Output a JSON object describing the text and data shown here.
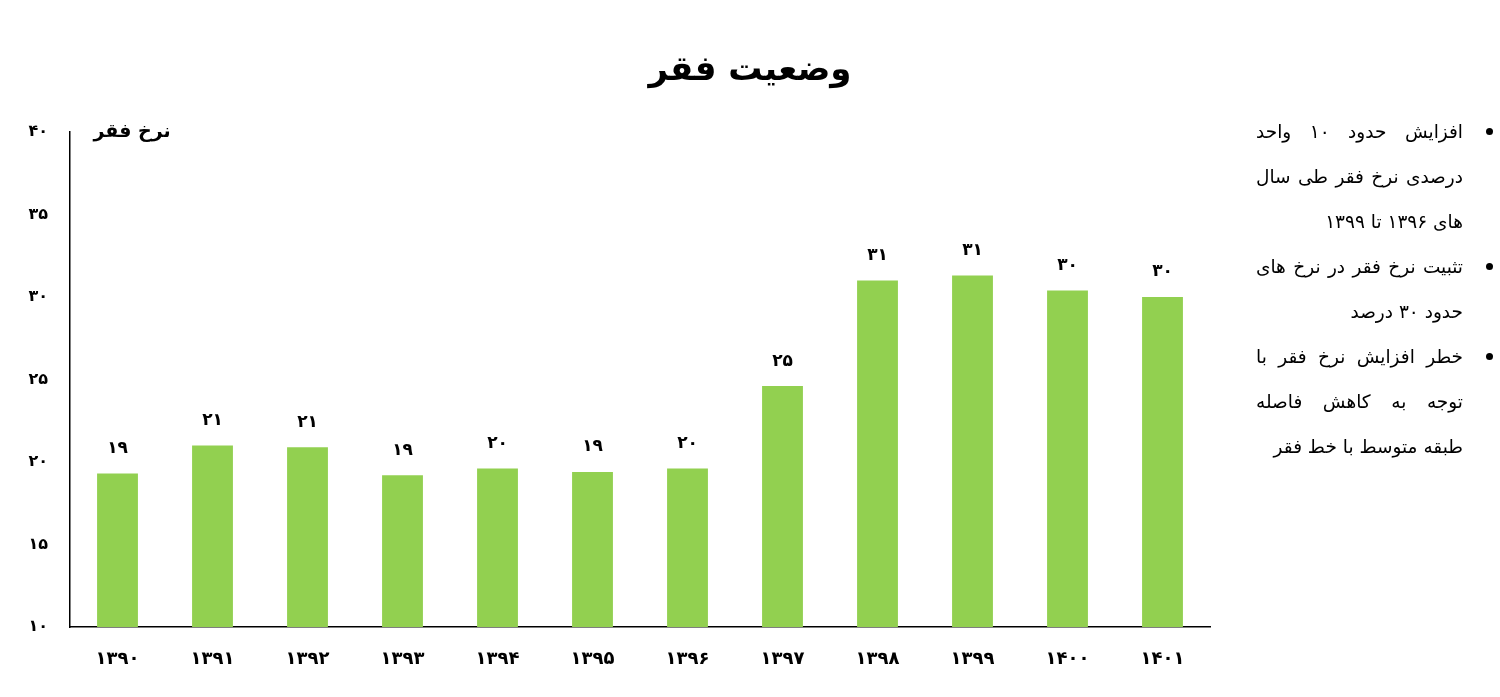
{
  "chart_data": {
    "type": "bar",
    "title": "وضعیت فقر",
    "ylabel": "نرخ فقر",
    "categories": [
      "۱۳۹۰",
      "۱۳۹۱",
      "۱۳۹۲",
      "۱۳۹۳",
      "۱۳۹۴",
      "۱۳۹۵",
      "۱۳۹۶",
      "۱۳۹۷",
      "۱۳۹۸",
      "۱۳۹۹",
      "۱۴۰۰",
      "۱۴۰۱"
    ],
    "values": [
      19.3,
      21.0,
      20.9,
      19.2,
      19.6,
      19.4,
      19.6,
      24.6,
      31.0,
      31.3,
      30.4,
      30.0
    ],
    "value_labels": [
      "۱۹",
      "۲۱",
      "۲۱",
      "۱۹",
      "۲۰",
      "۱۹",
      "۲۰",
      "۲۵",
      "۳۱",
      "۳۱",
      "۳۰",
      "۳۰"
    ],
    "color": "#92d050",
    "ylim": [
      10,
      40
    ],
    "yticks": [
      {
        "value": 10,
        "label": "۱۰"
      },
      {
        "value": 15,
        "label": "۱۵"
      },
      {
        "value": 20,
        "label": "۲۰"
      },
      {
        "value": 25,
        "label": "۲۵"
      },
      {
        "value": 30,
        "label": "۳۰"
      },
      {
        "value": 35,
        "label": "۳۵"
      },
      {
        "value": 40,
        "label": "۴۰"
      }
    ],
    "annotations": [
      "افزایش حدود ۱۰ واحد درصدی نرخ فقر طی سال های ۱۳۹۶ تا ۱۳۹۹",
      "تثبیت نرخ فقر در نرخ های حدود ۳۰ درصد",
      "خطر افزایش نرخ فقر با توجه به کاهش فاصله طبقه متوسط با خط فقر"
    ]
  }
}
